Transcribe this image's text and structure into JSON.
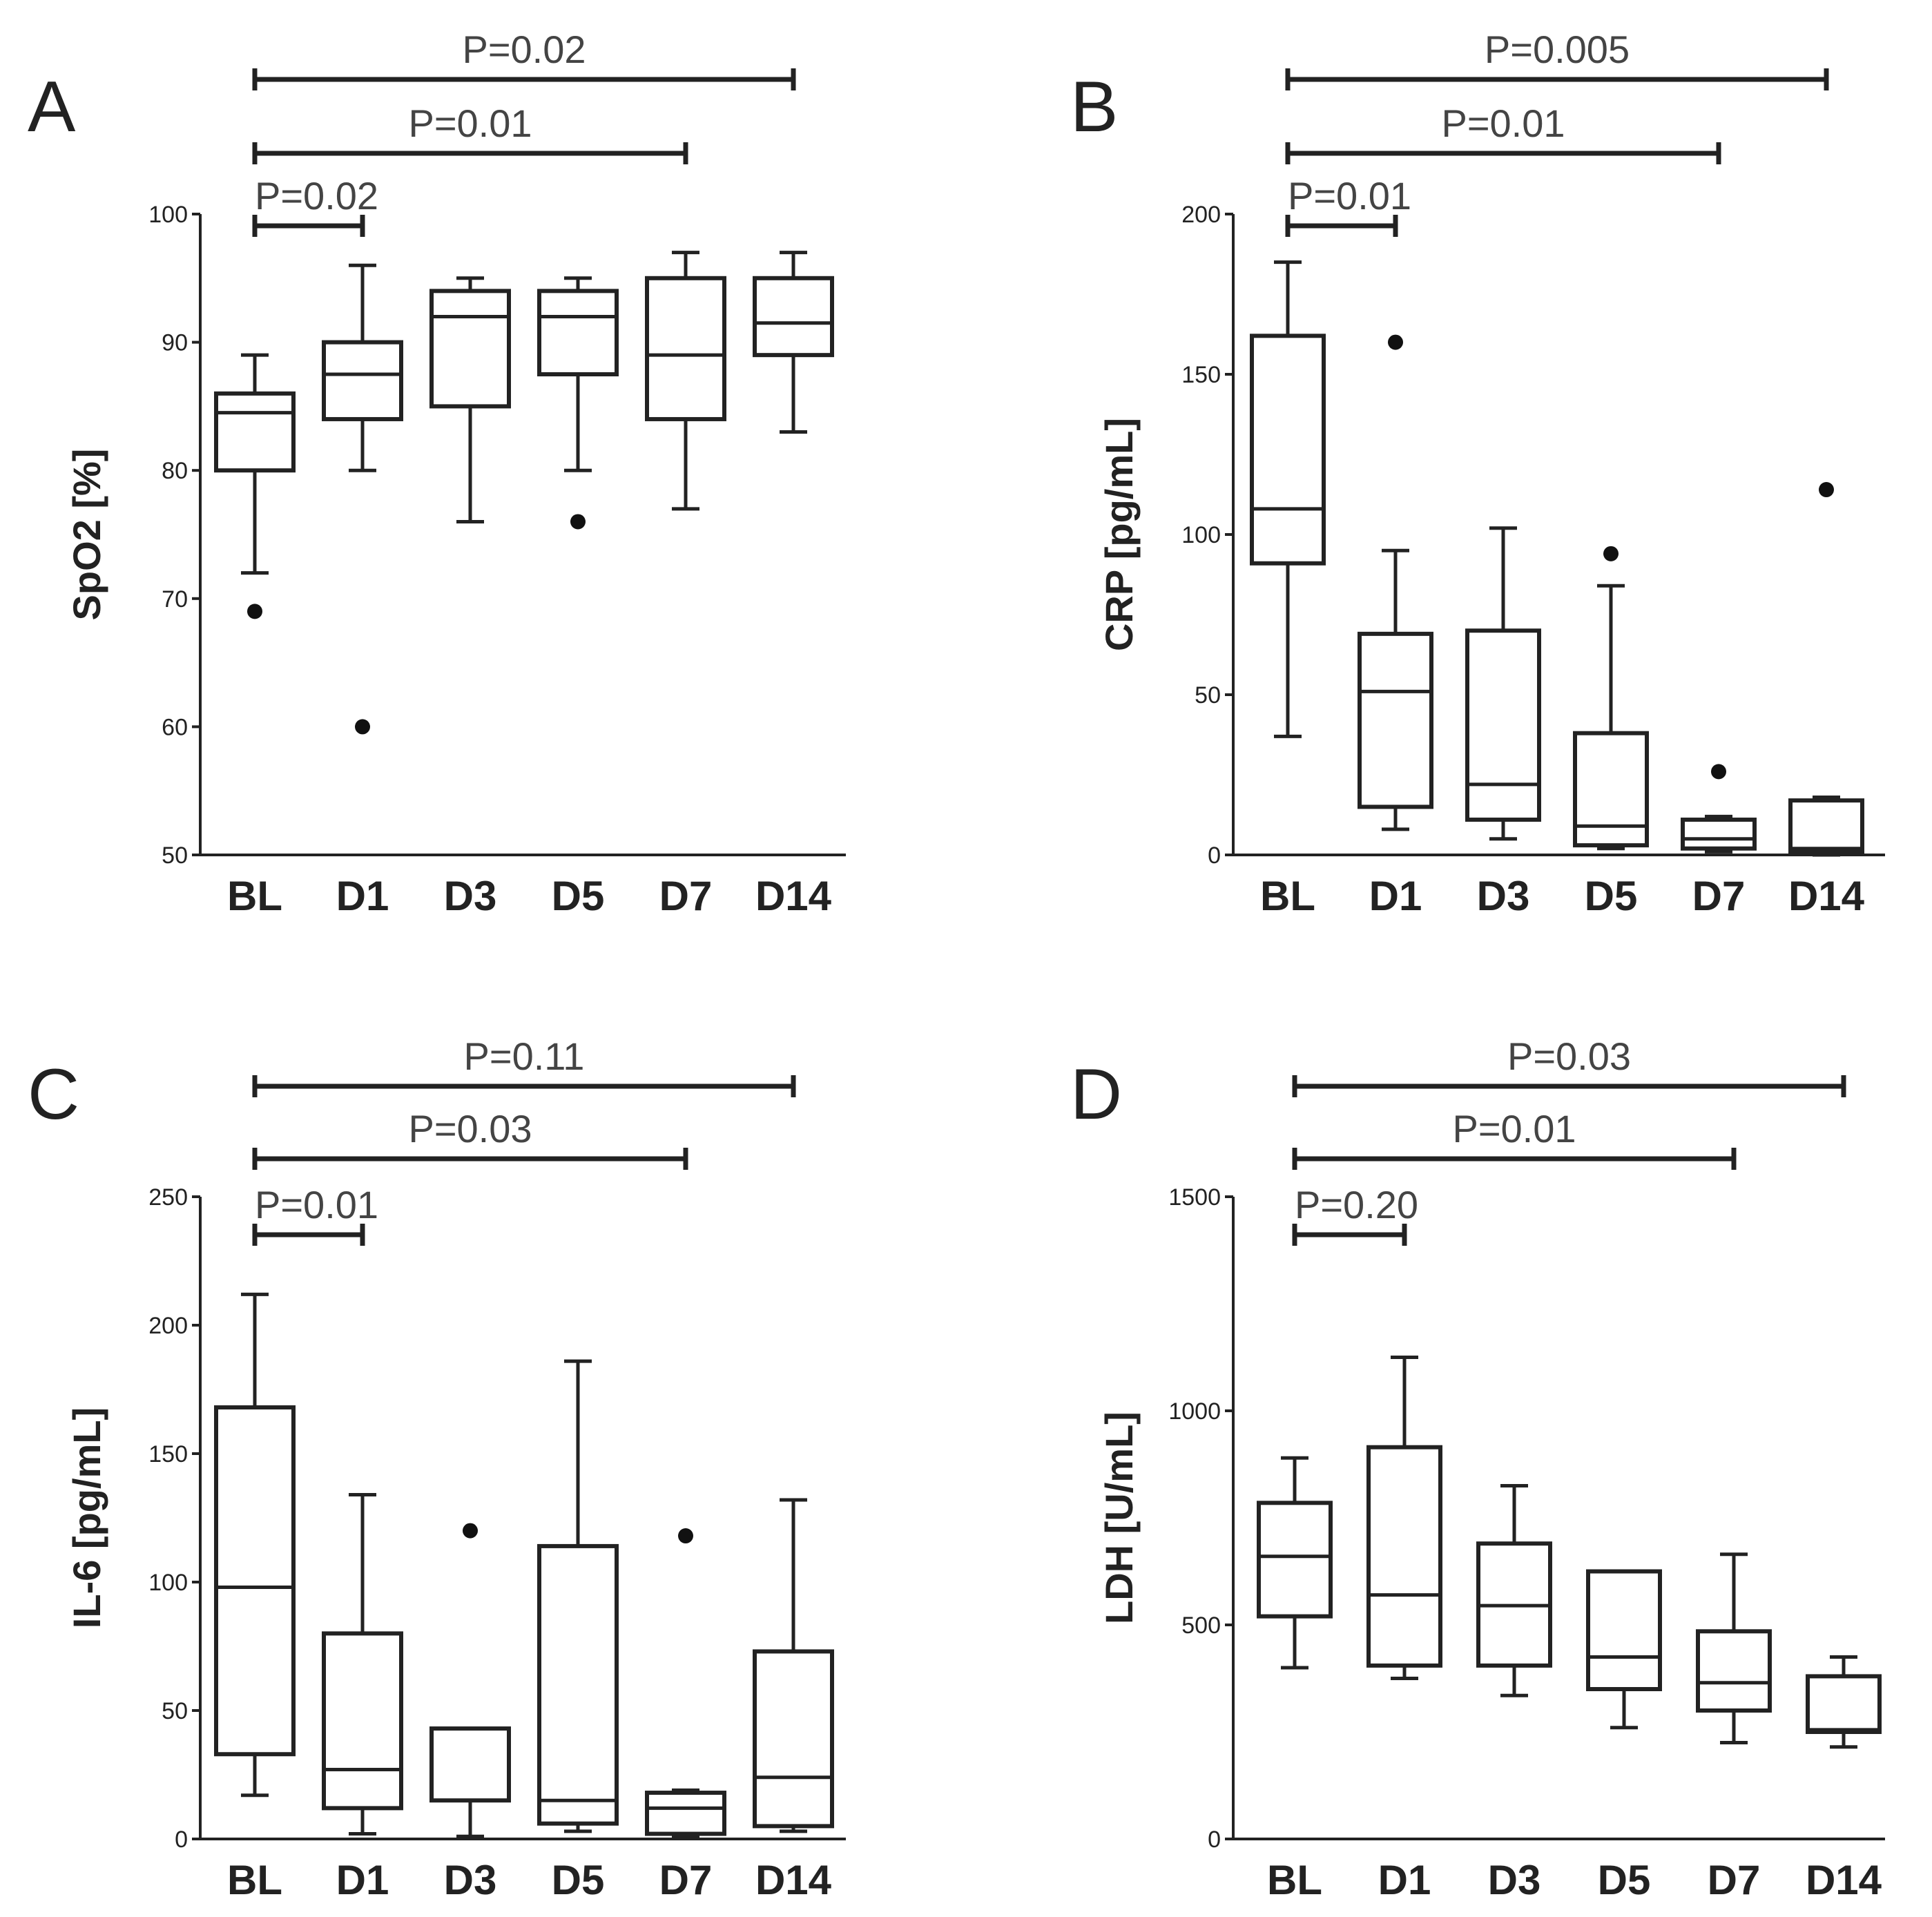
{
  "chart_data": [
    {
      "type": "box",
      "panel": "A",
      "ylabel": "SpO2 [%]",
      "ylim": [
        50,
        100
      ],
      "yticks": [
        50,
        60,
        70,
        80,
        90,
        100
      ],
      "categories": [
        "BL",
        "D1",
        "D3",
        "D5",
        "D7",
        "D14"
      ],
      "boxes": [
        {
          "min": 72,
          "q1": 80,
          "median": 84.5,
          "q3": 86,
          "max": 89,
          "outliers": [
            69
          ]
        },
        {
          "min": 80,
          "q1": 84,
          "median": 87.5,
          "q3": 90,
          "max": 96,
          "outliers": [
            60
          ]
        },
        {
          "min": 76,
          "q1": 85,
          "median": 92,
          "q3": 94,
          "max": 95,
          "outliers": []
        },
        {
          "min": 80,
          "q1": 87.5,
          "median": 92,
          "q3": 94,
          "max": 95,
          "outliers": [
            76
          ]
        },
        {
          "min": 77,
          "q1": 84,
          "median": 89,
          "q3": 95,
          "max": 97,
          "outliers": []
        },
        {
          "min": 83,
          "q1": 89,
          "median": 91.5,
          "q3": 95,
          "max": 97,
          "outliers": []
        }
      ],
      "comparisons": [
        {
          "label": "P=0.02",
          "from": "BL",
          "to": "D1"
        },
        {
          "label": "P=0.01",
          "from": "BL",
          "to": "D7"
        },
        {
          "label": "P=0.02",
          "from": "BL",
          "to": "D14"
        }
      ]
    },
    {
      "type": "box",
      "panel": "B",
      "ylabel": "CRP [pg/mL]",
      "ylim": [
        0,
        200
      ],
      "yticks": [
        0,
        50,
        100,
        150,
        200
      ],
      "categories": [
        "BL",
        "D1",
        "D3",
        "D5",
        "D7",
        "D14"
      ],
      "boxes": [
        {
          "min": 37,
          "q1": 91,
          "median": 108,
          "q3": 162,
          "max": 185,
          "outliers": []
        },
        {
          "min": 8,
          "q1": 15,
          "median": 51,
          "q3": 69,
          "max": 95,
          "outliers": [
            160
          ]
        },
        {
          "min": 5,
          "q1": 11,
          "median": 22,
          "q3": 70,
          "max": 102,
          "outliers": []
        },
        {
          "min": 2,
          "q1": 3,
          "median": 9,
          "q3": 38,
          "max": 84,
          "outliers": [
            94
          ]
        },
        {
          "min": 1,
          "q1": 2,
          "median": 5,
          "q3": 11,
          "max": 12,
          "outliers": [
            26
          ]
        },
        {
          "min": 0,
          "q1": 1,
          "median": 2,
          "q3": 17,
          "max": 18,
          "outliers": [
            114
          ]
        }
      ],
      "comparisons": [
        {
          "label": "P=0.01",
          "from": "BL",
          "to": "D1"
        },
        {
          "label": "P=0.01",
          "from": "BL",
          "to": "D7"
        },
        {
          "label": "P=0.005",
          "from": "BL",
          "to": "D14"
        }
      ]
    },
    {
      "type": "box",
      "panel": "C",
      "ylabel": "IL-6 [pg/mL]",
      "ylim": [
        0,
        250
      ],
      "yticks": [
        0,
        50,
        100,
        150,
        200,
        250
      ],
      "categories": [
        "BL",
        "D1",
        "D3",
        "D5",
        "D7",
        "D14"
      ],
      "boxes": [
        {
          "min": 17,
          "q1": 33,
          "median": 98,
          "q3": 168,
          "max": 212,
          "outliers": []
        },
        {
          "min": 2,
          "q1": 12,
          "median": 27,
          "q3": 80,
          "max": 134,
          "outliers": []
        },
        {
          "min": 1,
          "q1": 15,
          "median": 15,
          "q3": 43,
          "max": 43,
          "outliers": [
            120
          ]
        },
        {
          "min": 3,
          "q1": 6,
          "median": 15,
          "q3": 114,
          "max": 186,
          "outliers": []
        },
        {
          "min": 1,
          "q1": 2,
          "median": 12,
          "q3": 18,
          "max": 19,
          "outliers": [
            118
          ]
        },
        {
          "min": 3,
          "q1": 5,
          "median": 24,
          "q3": 73,
          "max": 132,
          "outliers": []
        }
      ],
      "comparisons": [
        {
          "label": "P=0.01",
          "from": "BL",
          "to": "D1"
        },
        {
          "label": "P=0.03",
          "from": "BL",
          "to": "D7"
        },
        {
          "label": "P=0.11",
          "from": "BL",
          "to": "D14"
        }
      ]
    },
    {
      "type": "box",
      "panel": "D",
      "ylabel": "LDH [U/mL]",
      "ylim": [
        0,
        1500
      ],
      "yticks": [
        0,
        500,
        1000,
        1500
      ],
      "categories": [
        "BL",
        "D1",
        "D3",
        "D5",
        "D7",
        "D14"
      ],
      "boxes": [
        {
          "min": 400,
          "q1": 520,
          "median": 660,
          "q3": 785,
          "max": 890,
          "outliers": []
        },
        {
          "min": 375,
          "q1": 405,
          "median": 570,
          "q3": 915,
          "max": 1125,
          "outliers": []
        },
        {
          "min": 335,
          "q1": 405,
          "median": 545,
          "q3": 690,
          "max": 825,
          "outliers": []
        },
        {
          "min": 260,
          "q1": 350,
          "median": 425,
          "q3": 625,
          "max": 625,
          "outliers": []
        },
        {
          "min": 225,
          "q1": 300,
          "median": 365,
          "q3": 485,
          "max": 665,
          "outliers": []
        },
        {
          "min": 215,
          "q1": 250,
          "median": 255,
          "q3": 380,
          "max": 425,
          "outliers": []
        }
      ],
      "comparisons": [
        {
          "label": "P=0.20",
          "from": "BL",
          "to": "D1"
        },
        {
          "label": "P=0.01",
          "from": "BL",
          "to": "D7"
        },
        {
          "label": "P=0.03",
          "from": "BL",
          "to": "D14"
        }
      ]
    }
  ]
}
